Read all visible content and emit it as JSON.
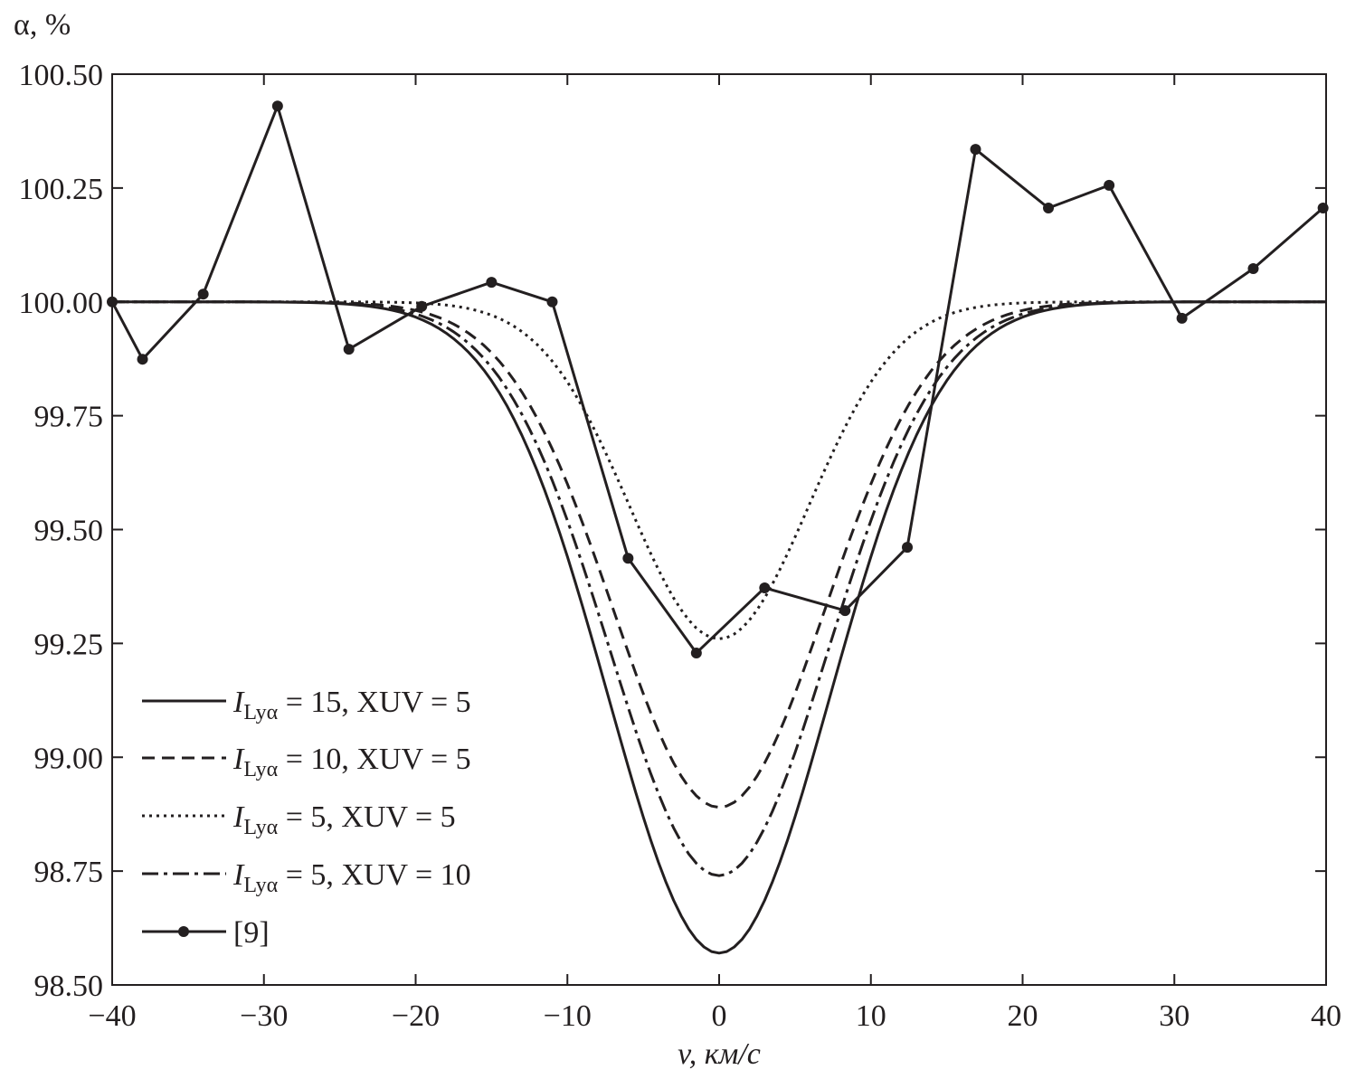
{
  "chart_data": {
    "type": "line",
    "title": "",
    "xlabel": "v, км/с",
    "ylabel": "α, %",
    "xlim": [
      -40,
      40
    ],
    "ylim": [
      98.5,
      100.5
    ],
    "xticks": [
      -40,
      -30,
      -20,
      -10,
      0,
      10,
      20,
      30,
      40
    ],
    "xtick_labels": [
      "−40",
      "−30",
      "−20",
      "−10",
      "0",
      "10",
      "20",
      "30",
      "40"
    ],
    "yticks": [
      98.5,
      98.75,
      99.0,
      99.25,
      99.5,
      99.75,
      100.0,
      100.25,
      100.5
    ],
    "ytick_labels": [
      "98.50",
      "98.75",
      "99.00",
      "99.25",
      "99.50",
      "99.75",
      "100.00",
      "100.25",
      "100.50"
    ],
    "grid": false,
    "legend_position": "bottom-left",
    "series": [
      {
        "name": "I_Lyα = 15, XUV = 5",
        "label_main": "I",
        "label_sub": "Lyα",
        "label_rest": " = 15, XUV = 5",
        "style": "solid",
        "model": "gaussian_dip",
        "baseline": 100.0,
        "minimum": 98.57,
        "sigma_kms": 7.3
      },
      {
        "name": "I_Lyα = 10, XUV = 5",
        "label_main": "I",
        "label_sub": "Lyα",
        "label_rest": " = 10, XUV = 5",
        "style": "dashed",
        "model": "gaussian_dip",
        "baseline": 100.0,
        "minimum": 98.89,
        "sigma_kms": 7.0
      },
      {
        "name": "I_Lyα = 5, XUV = 5",
        "label_main": "I",
        "label_sub": "Lyα",
        "label_rest": " = 5, XUV = 5",
        "style": "dotted",
        "model": "gaussian_dip",
        "baseline": 100.0,
        "minimum": 99.26,
        "sigma_kms": 5.9
      },
      {
        "name": "I_Lyα = 5, XUV = 10",
        "label_main": "I",
        "label_sub": "Lyα",
        "label_rest": " = 5, XUV = 10",
        "style": "dashdot",
        "model": "gaussian_dip",
        "baseline": 100.0,
        "minimum": 98.74,
        "sigma_kms": 7.2
      },
      {
        "name": "[9]",
        "label_main": "",
        "label_sub": "",
        "label_rest": "[9]",
        "style": "solid-markers",
        "x": [
          -40.0,
          -38.0,
          -34.0,
          -29.1,
          -24.4,
          -19.6,
          -15.0,
          -11.0,
          -6.0,
          -1.5,
          3.0,
          8.3,
          12.4,
          16.9,
          21.7,
          25.7,
          30.5,
          35.2,
          39.8
        ],
        "y": [
          100.0,
          99.874,
          100.017,
          100.43,
          99.896,
          99.99,
          100.043,
          100.0,
          99.437,
          99.229,
          99.372,
          99.322,
          99.461,
          100.335,
          100.206,
          100.256,
          99.964,
          100.073,
          100.206
        ]
      }
    ]
  }
}
